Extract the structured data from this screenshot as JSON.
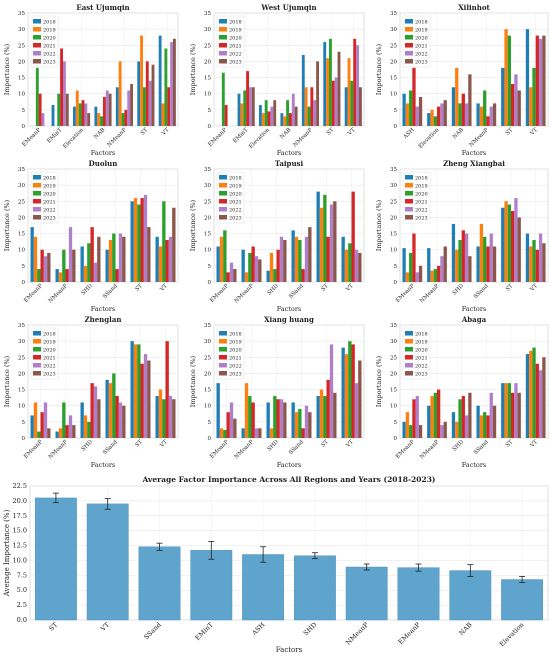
{
  "colors": {
    "2018": "#1f7fb4",
    "2019": "#ff7f0e",
    "2020": "#2ca02c",
    "2021": "#d62728",
    "2022": "#b07fc9",
    "2023": "#8c564b",
    "avg_bar": "#5fa4cc"
  },
  "chart_data": [
    {
      "type": "bar",
      "title": "East Ujumqin",
      "xlabel": "Factors",
      "ylabel": "Importance (%)",
      "ylim": [
        0,
        35
      ],
      "yticks": [
        0,
        5,
        10,
        15,
        20,
        25,
        30,
        35
      ],
      "grid": true,
      "legend": "top-left",
      "categories": [
        "EMeanP",
        "EMinT",
        "Elevation",
        "NAB",
        "NMeanP",
        "ST",
        "VT"
      ],
      "series": [
        {
          "name": "2018",
          "values": [
            0,
            6.5,
            6,
            6,
            12,
            20,
            28
          ]
        },
        {
          "name": "2019",
          "values": [
            0,
            0,
            11,
            4,
            20,
            28,
            7
          ]
        },
        {
          "name": "2020",
          "values": [
            18,
            10,
            7,
            3,
            4,
            12,
            24
          ]
        },
        {
          "name": "2021",
          "values": [
            10,
            24,
            8,
            9,
            5,
            20,
            12
          ]
        },
        {
          "name": "2022",
          "values": [
            4,
            20,
            7,
            11,
            11,
            14,
            26
          ]
        },
        {
          "name": "2023",
          "values": [
            0,
            10,
            4,
            10,
            13,
            19,
            27
          ]
        }
      ]
    },
    {
      "type": "bar",
      "title": "West Ujumqin",
      "xlabel": "Factors",
      "ylabel": "Importance (%)",
      "ylim": [
        0,
        35
      ],
      "yticks": [
        0,
        5,
        10,
        15,
        20,
        25,
        30,
        35
      ],
      "grid": true,
      "legend": "top-left",
      "categories": [
        "EMeanP",
        "EMinT",
        "Elevation",
        "NAB",
        "NMeanP",
        "ST",
        "VT"
      ],
      "series": [
        {
          "name": "2018",
          "values": [
            0,
            10,
            6.5,
            4,
            22,
            26,
            12
          ]
        },
        {
          "name": "2019",
          "values": [
            0,
            7,
            4,
            3,
            12,
            21,
            21
          ]
        },
        {
          "name": "2020",
          "values": [
            16.5,
            11,
            8,
            8,
            6,
            27,
            14
          ]
        },
        {
          "name": "2021",
          "values": [
            6.5,
            17,
            4.5,
            4,
            12,
            14,
            27
          ]
        },
        {
          "name": "2022",
          "values": [
            0,
            12,
            6,
            10,
            8,
            15,
            25
          ]
        },
        {
          "name": "2023",
          "values": [
            0,
            12,
            8,
            6,
            20,
            23,
            12
          ]
        }
      ]
    },
    {
      "type": "bar",
      "title": "Xilinhot",
      "xlabel": "Factors",
      "ylabel": "Importance (%)",
      "ylim": [
        0,
        35
      ],
      "yticks": [
        0,
        5,
        10,
        15,
        20,
        25,
        30,
        35
      ],
      "grid": true,
      "legend": "top-left",
      "categories": [
        "ASH",
        "Elevation",
        "NAB",
        "NMeanP",
        "ST",
        "VT"
      ],
      "series": [
        {
          "name": "2018",
          "values": [
            10,
            4,
            12,
            7,
            18,
            30
          ]
        },
        {
          "name": "2019",
          "values": [
            7,
            5,
            18,
            6,
            30,
            12
          ]
        },
        {
          "name": "2020",
          "values": [
            11,
            3,
            7,
            11,
            28,
            18
          ]
        },
        {
          "name": "2021",
          "values": [
            18,
            6,
            10,
            3,
            13,
            28
          ]
        },
        {
          "name": "2022",
          "values": [
            6,
            7,
            7,
            6,
            16,
            27
          ]
        },
        {
          "name": "2023",
          "values": [
            9,
            8,
            16,
            7,
            11,
            28
          ]
        }
      ]
    },
    {
      "type": "bar",
      "title": "Duolun",
      "xlabel": "Factors",
      "ylabel": "Importance (%)",
      "ylim": [
        0,
        35
      ],
      "yticks": [
        0,
        5,
        10,
        15,
        20,
        25,
        30,
        35
      ],
      "grid": true,
      "legend": "top-left",
      "categories": [
        "EMeanP",
        "NMeanP",
        "SHD",
        "SSand",
        "ST",
        "VT"
      ],
      "series": [
        {
          "name": "2018",
          "values": [
            17,
            4,
            11,
            10,
            25,
            14
          ]
        },
        {
          "name": "2019",
          "values": [
            14,
            3,
            5,
            13,
            26,
            11
          ]
        },
        {
          "name": "2020",
          "values": [
            4,
            10,
            12,
            15,
            24,
            25
          ]
        },
        {
          "name": "2021",
          "values": [
            10,
            4,
            17,
            4,
            26,
            13
          ]
        },
        {
          "name": "2022",
          "values": [
            8,
            17,
            6,
            15,
            27,
            14
          ]
        },
        {
          "name": "2023",
          "values": [
            9,
            10,
            14,
            14,
            17,
            23
          ]
        }
      ]
    },
    {
      "type": "bar",
      "title": "Taipusi",
      "xlabel": "Factors",
      "ylabel": "Importance (%)",
      "ylim": [
        0,
        35
      ],
      "yticks": [
        0,
        5,
        10,
        15,
        20,
        25,
        30,
        35
      ],
      "grid": true,
      "legend": "top-left",
      "categories": [
        "EMeanP",
        "NMeanP",
        "SHD",
        "SSand",
        "ST",
        "VT"
      ],
      "series": [
        {
          "name": "2018",
          "values": [
            11,
            10,
            3.5,
            16,
            28,
            14
          ]
        },
        {
          "name": "2019",
          "values": [
            14,
            3,
            9,
            14,
            23,
            10
          ]
        },
        {
          "name": "2020",
          "values": [
            16,
            9,
            4,
            13,
            27,
            12
          ]
        },
        {
          "name": "2021",
          "values": [
            3,
            11,
            10,
            4,
            14,
            28
          ]
        },
        {
          "name": "2022",
          "values": [
            6,
            8,
            14,
            14,
            24,
            10
          ]
        },
        {
          "name": "2023",
          "values": [
            4,
            7,
            13,
            17,
            25,
            9
          ]
        }
      ]
    },
    {
      "type": "bar",
      "title": "Zheng Xiangbai",
      "xlabel": "Factors",
      "ylabel": "Importance (%)",
      "ylim": [
        0,
        35
      ],
      "yticks": [
        0,
        5,
        10,
        15,
        20,
        25,
        30,
        35
      ],
      "grid": true,
      "legend": "top-left",
      "categories": [
        "EMeanP",
        "NMeanP",
        "SHD",
        "SSand",
        "ST",
        "VT"
      ],
      "series": [
        {
          "name": "2018",
          "values": [
            10.5,
            10.5,
            18,
            11,
            23,
            15
          ]
        },
        {
          "name": "2019",
          "values": [
            3,
            3.5,
            10,
            18,
            25,
            11
          ]
        },
        {
          "name": "2020",
          "values": [
            9,
            4,
            13,
            14,
            24,
            13
          ]
        },
        {
          "name": "2021",
          "values": [
            15,
            5,
            16,
            11,
            22,
            10
          ]
        },
        {
          "name": "2022",
          "values": [
            3,
            8,
            15,
            15,
            26,
            15
          ]
        },
        {
          "name": "2023",
          "values": [
            5,
            11,
            8,
            11,
            20,
            12
          ]
        }
      ]
    },
    {
      "type": "bar",
      "title": "Zhenglan",
      "xlabel": "Factors",
      "ylabel": "Importance (%)",
      "ylim": [
        0,
        35
      ],
      "yticks": [
        0,
        5,
        10,
        15,
        20,
        25,
        30,
        35
      ],
      "grid": true,
      "legend": "top-left",
      "categories": [
        "EMeanP",
        "NMeanP",
        "SHD",
        "SSand",
        "ST",
        "VT"
      ],
      "series": [
        {
          "name": "2018",
          "values": [
            7,
            2,
            11,
            18,
            30,
            13
          ]
        },
        {
          "name": "2019",
          "values": [
            11,
            3,
            7,
            17,
            29,
            15
          ]
        },
        {
          "name": "2020",
          "values": [
            2,
            11,
            5,
            20,
            29,
            12
          ]
        },
        {
          "name": "2021",
          "values": [
            8,
            4,
            17,
            13,
            23,
            30
          ]
        },
        {
          "name": "2022",
          "values": [
            11,
            7,
            16,
            11,
            26,
            13
          ]
        },
        {
          "name": "2023",
          "values": [
            3,
            4,
            12,
            10,
            24,
            12
          ]
        }
      ]
    },
    {
      "type": "bar",
      "title": "Xiang huang",
      "xlabel": "Factors",
      "ylabel": "Importance (%)",
      "ylim": [
        0,
        35
      ],
      "yticks": [
        0,
        5,
        10,
        15,
        20,
        25,
        30,
        35
      ],
      "grid": true,
      "legend": "top-left",
      "categories": [
        "EMeanP",
        "NMeanP",
        "SHD",
        "SSand",
        "ST",
        "VT"
      ],
      "series": [
        {
          "name": "2018",
          "values": [
            17,
            3,
            11,
            11,
            13,
            28
          ]
        },
        {
          "name": "2019",
          "values": [
            3,
            17,
            3,
            8,
            15,
            26
          ]
        },
        {
          "name": "2020",
          "values": [
            2.5,
            13,
            13,
            9,
            13,
            30
          ]
        },
        {
          "name": "2021",
          "values": [
            8,
            11,
            12,
            3,
            18,
            29
          ]
        },
        {
          "name": "2022",
          "values": [
            11,
            3,
            12,
            10,
            29,
            17
          ]
        },
        {
          "name": "2023",
          "values": [
            6,
            3,
            11,
            8,
            14,
            24
          ]
        }
      ]
    },
    {
      "type": "bar",
      "title": "Abaga",
      "xlabel": "Factors",
      "ylabel": "Importance (%)",
      "ylim": [
        0,
        35
      ],
      "yticks": [
        0,
        5,
        10,
        15,
        20,
        25,
        30,
        35
      ],
      "grid": true,
      "legend": "top-left",
      "categories": [
        "EMeanP",
        "NMeanP",
        "SHD",
        "SSand",
        "ST",
        "VT"
      ],
      "series": [
        {
          "name": "2018",
          "values": [
            5,
            10,
            8,
            10,
            17,
            26
          ]
        },
        {
          "name": "2019",
          "values": [
            8,
            13,
            5,
            7,
            17,
            27
          ]
        },
        {
          "name": "2020",
          "values": [
            4,
            14,
            12,
            8,
            17,
            28
          ]
        },
        {
          "name": "2021",
          "values": [
            12,
            15,
            13,
            7,
            14,
            23
          ]
        },
        {
          "name": "2022",
          "values": [
            13,
            4,
            7,
            14,
            17,
            21
          ]
        },
        {
          "name": "2023",
          "values": [
            4,
            5,
            14,
            10,
            14,
            25
          ]
        }
      ]
    },
    {
      "type": "bar",
      "title": "Average Factor Importance Across All Regions and Years (2018-2023)",
      "xlabel": "Factors",
      "ylabel": "Average Importance (%)",
      "ylim": [
        0,
        22.5
      ],
      "yticks": [
        0.0,
        2.5,
        5.0,
        7.5,
        10.0,
        12.5,
        15.0,
        17.5,
        20.0,
        22.5
      ],
      "grid": true,
      "categories": [
        "ST",
        "VT",
        "SSand",
        "EMinT",
        "ASH",
        "SHD",
        "NMeanP",
        "EMeanP",
        "NAB",
        "Elevation"
      ],
      "values": [
        20.5,
        19.5,
        12.3,
        11.7,
        11.0,
        10.8,
        8.9,
        8.8,
        8.3,
        6.8
      ],
      "errors": [
        0.8,
        0.9,
        0.6,
        1.5,
        1.3,
        0.5,
        0.5,
        0.6,
        1.0,
        0.5
      ]
    }
  ]
}
